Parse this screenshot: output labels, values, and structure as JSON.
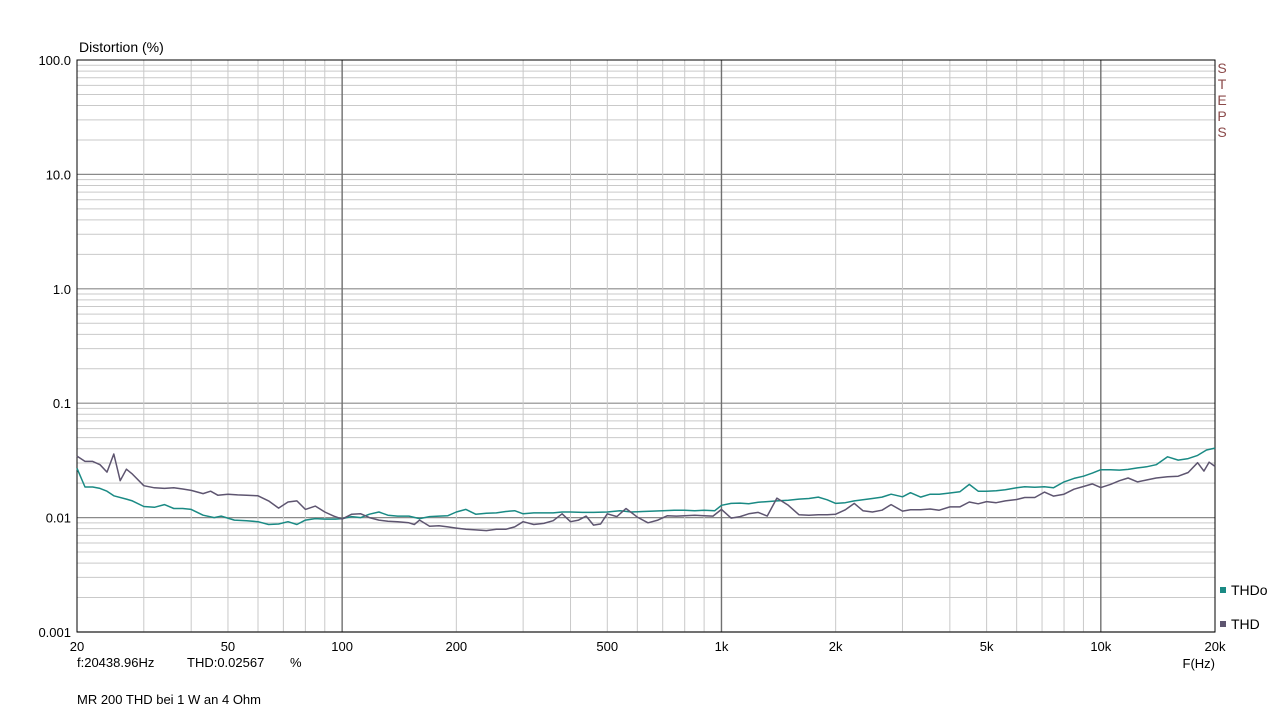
{
  "chart_data": {
    "type": "line",
    "ylabel": "Distortion (%)",
    "xlabel": "F(Hz)",
    "x_scale": "log",
    "y_scale": "log",
    "xlim": [
      20,
      20000
    ],
    "ylim": [
      0.001,
      100
    ],
    "grid": true,
    "legend_position": "bottom-right",
    "x_tick_labels": [
      {
        "value": 20,
        "label": "20"
      },
      {
        "value": 50,
        "label": "50"
      },
      {
        "value": 100,
        "label": "100"
      },
      {
        "value": 200,
        "label": "200"
      },
      {
        "value": 500,
        "label": "500"
      },
      {
        "value": 1000,
        "label": "1k"
      },
      {
        "value": 2000,
        "label": "2k"
      },
      {
        "value": 5000,
        "label": "5k"
      },
      {
        "value": 10000,
        "label": "10k"
      },
      {
        "value": 20000,
        "label": "20k"
      }
    ],
    "y_tick_labels": [
      {
        "value": 100,
        "label": "100.0"
      },
      {
        "value": 10,
        "label": "10.0"
      },
      {
        "value": 1,
        "label": "1.0"
      },
      {
        "value": 0.1,
        "label": "0.1"
      },
      {
        "value": 0.01,
        "label": "0.01"
      },
      {
        "value": 0.001,
        "label": "0.001"
      }
    ],
    "side_label": "STEPS",
    "series": [
      {
        "name": "THDo",
        "color": "#1a8a84",
        "points": [
          [
            20,
            0.027
          ],
          [
            21,
            0.0185
          ],
          [
            22,
            0.0185
          ],
          [
            23,
            0.018
          ],
          [
            24,
            0.017
          ],
          [
            25,
            0.0155
          ],
          [
            27,
            0.0145
          ],
          [
            28,
            0.014
          ],
          [
            30,
            0.0125
          ],
          [
            32,
            0.0123
          ],
          [
            34,
            0.013
          ],
          [
            36,
            0.012
          ],
          [
            38,
            0.012
          ],
          [
            40,
            0.0118
          ],
          [
            43,
            0.0105
          ],
          [
            46,
            0.01
          ],
          [
            48,
            0.0103
          ],
          [
            52,
            0.0095
          ],
          [
            56,
            0.0094
          ],
          [
            60,
            0.0092
          ],
          [
            64,
            0.0087
          ],
          [
            68,
            0.0088
          ],
          [
            72,
            0.0092
          ],
          [
            76,
            0.0087
          ],
          [
            80,
            0.0095
          ],
          [
            85,
            0.0098
          ],
          [
            90,
            0.0097
          ],
          [
            96,
            0.0097
          ],
          [
            100,
            0.0098
          ],
          [
            106,
            0.0102
          ],
          [
            112,
            0.01
          ],
          [
            118,
            0.0107
          ],
          [
            125,
            0.0112
          ],
          [
            132,
            0.0105
          ],
          [
            140,
            0.0103
          ],
          [
            150,
            0.0103
          ],
          [
            160,
            0.0098
          ],
          [
            170,
            0.0102
          ],
          [
            180,
            0.0103
          ],
          [
            190,
            0.0104
          ],
          [
            200,
            0.0112
          ],
          [
            212,
            0.0118
          ],
          [
            225,
            0.0107
          ],
          [
            240,
            0.0109
          ],
          [
            255,
            0.011
          ],
          [
            270,
            0.0113
          ],
          [
            285,
            0.0115
          ],
          [
            300,
            0.0108
          ],
          [
            320,
            0.011
          ],
          [
            340,
            0.011
          ],
          [
            360,
            0.011
          ],
          [
            380,
            0.0112
          ],
          [
            400,
            0.0112
          ],
          [
            430,
            0.0111
          ],
          [
            460,
            0.0111
          ],
          [
            500,
            0.0112
          ],
          [
            540,
            0.0115
          ],
          [
            580,
            0.0112
          ],
          [
            620,
            0.0113
          ],
          [
            660,
            0.0114
          ],
          [
            700,
            0.0115
          ],
          [
            750,
            0.0116
          ],
          [
            800,
            0.0116
          ],
          [
            850,
            0.0115
          ],
          [
            900,
            0.0116
          ],
          [
            960,
            0.0115
          ],
          [
            1000,
            0.0128
          ],
          [
            1060,
            0.0133
          ],
          [
            1120,
            0.0134
          ],
          [
            1180,
            0.0132
          ],
          [
            1250,
            0.0136
          ],
          [
            1320,
            0.0138
          ],
          [
            1400,
            0.014
          ],
          [
            1500,
            0.0142
          ],
          [
            1600,
            0.0145
          ],
          [
            1700,
            0.0147
          ],
          [
            1800,
            0.0151
          ],
          [
            1900,
            0.0143
          ],
          [
            2000,
            0.0133
          ],
          [
            2120,
            0.0135
          ],
          [
            2240,
            0.014
          ],
          [
            2360,
            0.0143
          ],
          [
            2500,
            0.0147
          ],
          [
            2650,
            0.0151
          ],
          [
            2800,
            0.016
          ],
          [
            3000,
            0.0152
          ],
          [
            3150,
            0.0165
          ],
          [
            3350,
            0.0151
          ],
          [
            3550,
            0.016
          ],
          [
            3750,
            0.016
          ],
          [
            4000,
            0.0164
          ],
          [
            4250,
            0.0168
          ],
          [
            4500,
            0.0195
          ],
          [
            4750,
            0.017
          ],
          [
            5000,
            0.017
          ],
          [
            5300,
            0.0172
          ],
          [
            5600,
            0.0175
          ],
          [
            6000,
            0.0182
          ],
          [
            6300,
            0.0186
          ],
          [
            6700,
            0.0184
          ],
          [
            7100,
            0.0186
          ],
          [
            7500,
            0.0182
          ],
          [
            8000,
            0.0205
          ],
          [
            8500,
            0.022
          ],
          [
            9000,
            0.023
          ],
          [
            9500,
            0.0245
          ],
          [
            10000,
            0.0262
          ],
          [
            10600,
            0.0262
          ],
          [
            11200,
            0.026
          ],
          [
            11800,
            0.0264
          ],
          [
            12500,
            0.0272
          ],
          [
            13200,
            0.0278
          ],
          [
            14000,
            0.029
          ],
          [
            15000,
            0.034
          ],
          [
            16000,
            0.0318
          ],
          [
            17000,
            0.0328
          ],
          [
            18000,
            0.035
          ],
          [
            19000,
            0.039
          ],
          [
            20000,
            0.0405
          ]
        ]
      },
      {
        "name": "THD",
        "color": "#5e5570",
        "points": [
          [
            20,
            0.0345
          ],
          [
            21,
            0.031
          ],
          [
            22,
            0.031
          ],
          [
            23,
            0.029
          ],
          [
            24,
            0.025
          ],
          [
            25,
            0.036
          ],
          [
            26,
            0.021
          ],
          [
            27,
            0.0265
          ],
          [
            28,
            0.024
          ],
          [
            30,
            0.019
          ],
          [
            32,
            0.0182
          ],
          [
            34,
            0.018
          ],
          [
            36,
            0.0182
          ],
          [
            38,
            0.0178
          ],
          [
            40,
            0.0173
          ],
          [
            43,
            0.0162
          ],
          [
            45,
            0.017
          ],
          [
            47,
            0.0157
          ],
          [
            50,
            0.016
          ],
          [
            53,
            0.0158
          ],
          [
            56,
            0.0157
          ],
          [
            60,
            0.0155
          ],
          [
            64,
            0.014
          ],
          [
            68,
            0.0121
          ],
          [
            72,
            0.0137
          ],
          [
            76,
            0.014
          ],
          [
            80,
            0.0118
          ],
          [
            85,
            0.0126
          ],
          [
            90,
            0.0112
          ],
          [
            95,
            0.0103
          ],
          [
            100,
            0.0097
          ],
          [
            106,
            0.0107
          ],
          [
            112,
            0.0108
          ],
          [
            118,
            0.01
          ],
          [
            125,
            0.0095
          ],
          [
            132,
            0.0093
          ],
          [
            140,
            0.0092
          ],
          [
            150,
            0.009
          ],
          [
            155,
            0.0087
          ],
          [
            160,
            0.0095
          ],
          [
            170,
            0.0084
          ],
          [
            180,
            0.0085
          ],
          [
            190,
            0.0083
          ],
          [
            200,
            0.0081
          ],
          [
            212,
            0.0079
          ],
          [
            225,
            0.0078
          ],
          [
            240,
            0.0077
          ],
          [
            255,
            0.0079
          ],
          [
            270,
            0.0079
          ],
          [
            285,
            0.0083
          ],
          [
            300,
            0.0092
          ],
          [
            320,
            0.0087
          ],
          [
            340,
            0.0089
          ],
          [
            360,
            0.0094
          ],
          [
            380,
            0.0108
          ],
          [
            400,
            0.0092
          ],
          [
            420,
            0.0095
          ],
          [
            440,
            0.0103
          ],
          [
            460,
            0.0086
          ],
          [
            480,
            0.0088
          ],
          [
            500,
            0.0108
          ],
          [
            530,
            0.0102
          ],
          [
            560,
            0.012
          ],
          [
            600,
            0.0101
          ],
          [
            640,
            0.009
          ],
          [
            680,
            0.0095
          ],
          [
            720,
            0.0104
          ],
          [
            760,
            0.0103
          ],
          [
            800,
            0.0104
          ],
          [
            850,
            0.0105
          ],
          [
            900,
            0.0104
          ],
          [
            950,
            0.0103
          ],
          [
            1000,
            0.0118
          ],
          [
            1060,
            0.0099
          ],
          [
            1120,
            0.0102
          ],
          [
            1180,
            0.0108
          ],
          [
            1250,
            0.0111
          ],
          [
            1320,
            0.0103
          ],
          [
            1400,
            0.0148
          ],
          [
            1500,
            0.0128
          ],
          [
            1600,
            0.0106
          ],
          [
            1700,
            0.0105
          ],
          [
            1800,
            0.0106
          ],
          [
            1900,
            0.0106
          ],
          [
            2000,
            0.0107
          ],
          [
            2120,
            0.0117
          ],
          [
            2240,
            0.0133
          ],
          [
            2360,
            0.0115
          ],
          [
            2500,
            0.0112
          ],
          [
            2650,
            0.0116
          ],
          [
            2800,
            0.013
          ],
          [
            3000,
            0.0114
          ],
          [
            3150,
            0.0117
          ],
          [
            3350,
            0.0117
          ],
          [
            3550,
            0.0119
          ],
          [
            3750,
            0.0116
          ],
          [
            4000,
            0.0124
          ],
          [
            4250,
            0.0124
          ],
          [
            4500,
            0.0137
          ],
          [
            4750,
            0.0132
          ],
          [
            5000,
            0.0138
          ],
          [
            5300,
            0.0135
          ],
          [
            5600,
            0.014
          ],
          [
            6000,
            0.0144
          ],
          [
            6300,
            0.015
          ],
          [
            6700,
            0.015
          ],
          [
            7100,
            0.0167
          ],
          [
            7500,
            0.0154
          ],
          [
            8000,
            0.016
          ],
          [
            8500,
            0.0177
          ],
          [
            9000,
            0.0187
          ],
          [
            9500,
            0.0197
          ],
          [
            10000,
            0.0183
          ],
          [
            10600,
            0.0195
          ],
          [
            11200,
            0.021
          ],
          [
            11800,
            0.0222
          ],
          [
            12500,
            0.0205
          ],
          [
            13200,
            0.0213
          ],
          [
            14000,
            0.0222
          ],
          [
            15000,
            0.0228
          ],
          [
            16000,
            0.023
          ],
          [
            17000,
            0.0248
          ],
          [
            18000,
            0.0302
          ],
          [
            18700,
            0.0255
          ],
          [
            19300,
            0.0305
          ],
          [
            20000,
            0.028
          ]
        ]
      }
    ]
  },
  "readout": {
    "freq": "f:20438.96Hz",
    "thd": "THD:0.02567",
    "unit": "%"
  },
  "caption": "MR 200 THD bei 1 W an 4 Ohm"
}
